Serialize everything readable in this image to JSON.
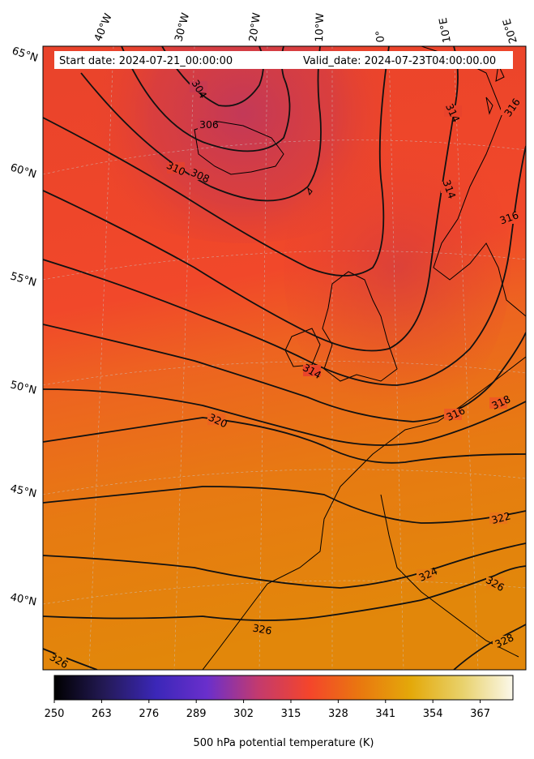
{
  "header": {
    "start_date": "Start date: 2024-07-21_00:00:00",
    "valid_date": "Valid_date: 2024-07-23T04:00:00.00"
  },
  "map": {
    "variable": "500 hPa potential temperature",
    "projection": "lambert-conformal",
    "longitude_labels": [
      "40°W",
      "30°W",
      "20°W",
      "10°W",
      "0°",
      "10°E",
      "20°E"
    ],
    "latitude_labels": [
      "65°N",
      "60°N",
      "55°N",
      "50°N",
      "45°N",
      "40°N"
    ],
    "contour_labels": [
      "304",
      "306",
      "308",
      "310",
      "314",
      "314",
      "314",
      "316",
      "316",
      "316",
      "318",
      "320",
      "322",
      "324",
      "326",
      "326",
      "326",
      "328"
    ],
    "colors": {
      "cold_low": "#c33a55",
      "warm_mid": "#f24a28",
      "hot_south": "#e2850a",
      "contour": "#111111",
      "coastline": "#000000",
      "gridline": "#bbbbbb"
    }
  },
  "colorbar": {
    "label": "500 hPa potential temperature (K)",
    "min": 250,
    "max": 376,
    "ticks": [
      "250",
      "263",
      "276",
      "289",
      "302",
      "315",
      "328",
      "341",
      "354",
      "367"
    ],
    "stops": [
      "#000000",
      "#241a57",
      "#3b27b8",
      "#6a2fcc",
      "#c33a6e",
      "#f4452b",
      "#e9780f",
      "#e4a90a",
      "#e8d16a",
      "#fbf8ea"
    ]
  }
}
